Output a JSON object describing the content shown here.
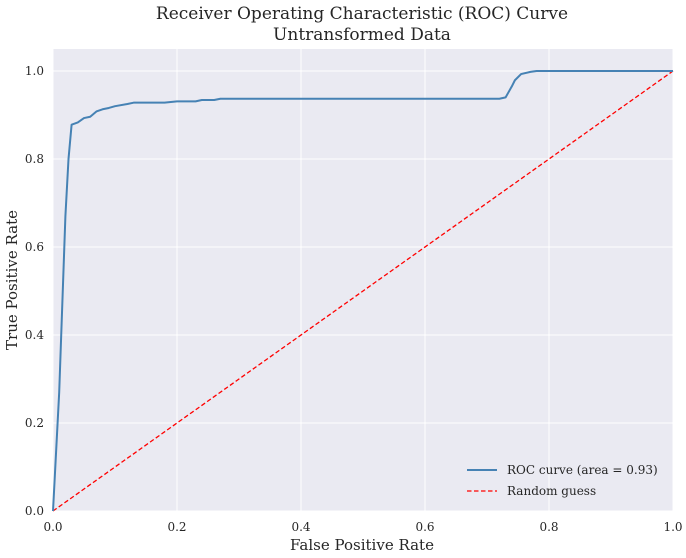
{
  "chart_data": {
    "type": "line",
    "title": "Receiver Operating Characteristic (ROC) Curve",
    "subtitle": "Untransformed Data",
    "xlabel": "False Positive Rate",
    "ylabel": "True Positive Rate",
    "xlim": [
      0.0,
      1.0
    ],
    "ylim": [
      0.0,
      1.05
    ],
    "x_ticks": [
      "0.0",
      "0.2",
      "0.4",
      "0.6",
      "0.8",
      "1.0"
    ],
    "y_ticks": [
      "0.0",
      "0.2",
      "0.4",
      "0.6",
      "0.8",
      "1.0"
    ],
    "grid": true,
    "legend_position": "lower-right",
    "series": [
      {
        "name": "ROC curve (area = 0.93)",
        "color": "#4682b4",
        "linestyle": "solid",
        "x": [
          0.0,
          0.01,
          0.02,
          0.025,
          0.03,
          0.04,
          0.05,
          0.06,
          0.07,
          0.08,
          0.09,
          0.1,
          0.12,
          0.13,
          0.15,
          0.18,
          0.2,
          0.23,
          0.24,
          0.26,
          0.27,
          0.3,
          0.4,
          0.5,
          0.6,
          0.7,
          0.72,
          0.73,
          0.74,
          0.745,
          0.755,
          0.77,
          0.78,
          1.0
        ],
        "y": [
          0.0,
          0.27,
          0.67,
          0.8,
          0.878,
          0.883,
          0.893,
          0.896,
          0.908,
          0.913,
          0.916,
          0.92,
          0.925,
          0.928,
          0.928,
          0.928,
          0.931,
          0.931,
          0.934,
          0.934,
          0.937,
          0.937,
          0.937,
          0.937,
          0.937,
          0.937,
          0.937,
          0.94,
          0.965,
          0.979,
          0.993,
          0.998,
          1.0,
          1.0
        ]
      },
      {
        "name": "Random guess",
        "color": "#ff0000",
        "linestyle": "dashed",
        "x": [
          0.0,
          1.0
        ],
        "y": [
          0.0,
          1.0
        ]
      }
    ]
  },
  "colors": {
    "plot_background": "#eaeaf2",
    "grid": "#ffffff",
    "text": "#262626"
  }
}
